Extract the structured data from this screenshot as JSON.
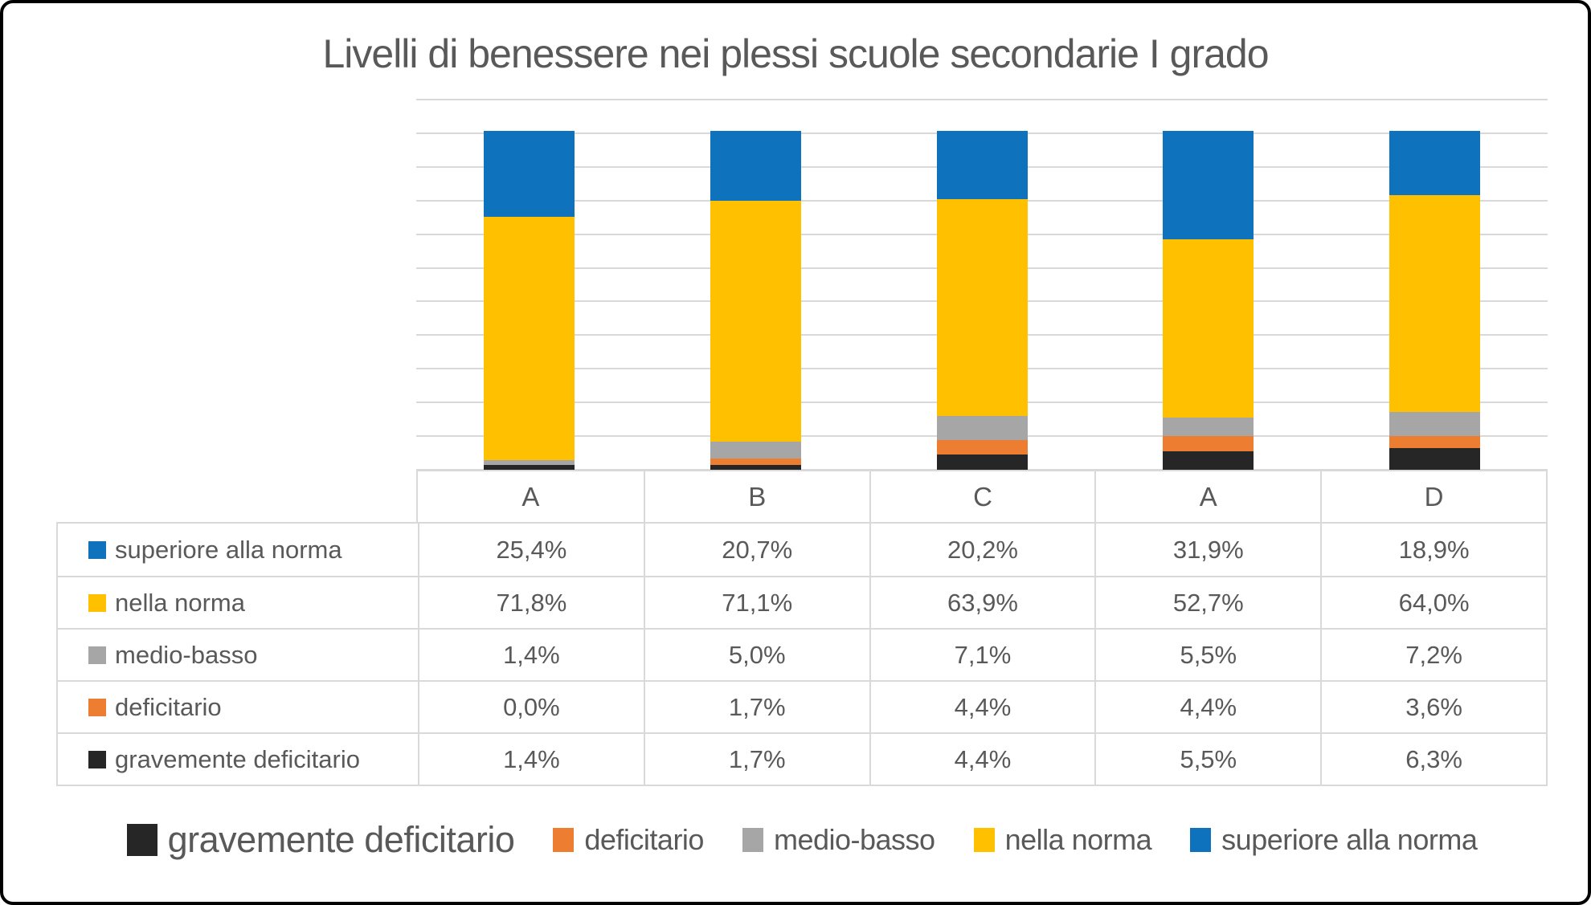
{
  "chart": {
    "title": "Livelli di benessere nei plessi scuole secondarie I grado"
  },
  "chart_data": {
    "type": "bar",
    "subtype": "stacked-percent-column",
    "title": "Livelli di benessere nei plessi scuole secondarie I grado",
    "categories": [
      "A",
      "B",
      "C",
      "A",
      "D"
    ],
    "stack_order": "bottom_to_top",
    "series": [
      {
        "name": "gravemente deficitario",
        "color": "#262626",
        "values": [
          1.4,
          1.7,
          4.4,
          5.5,
          6.3
        ]
      },
      {
        "name": "deficitario",
        "color": "#ED7D31",
        "values": [
          0.0,
          1.7,
          4.4,
          4.4,
          3.6
        ]
      },
      {
        "name": "medio-basso",
        "color": "#A6A6A6",
        "values": [
          1.4,
          5.0,
          7.1,
          5.5,
          7.2
        ]
      },
      {
        "name": "nella norma",
        "color": "#FFC000",
        "values": [
          71.8,
          71.1,
          63.9,
          52.7,
          64.0
        ]
      },
      {
        "name": "superiore alla norma",
        "color": "#0E72BD",
        "values": [
          25.4,
          20.7,
          20.2,
          31.9,
          18.9
        ]
      }
    ],
    "ylim": [
      0,
      110
    ],
    "gridline_step": 10,
    "grid": true,
    "y_axis_labels_visible": false,
    "legend_position": "bottom"
  },
  "table": {
    "column_headers": [
      "A",
      "B",
      "C",
      "A",
      "D"
    ],
    "rows": [
      {
        "label": "superiore alla norma",
        "color": "#0E72BD",
        "values": [
          "25,4%",
          "20,7%",
          "20,2%",
          "31,9%",
          "18,9%"
        ]
      },
      {
        "label": "nella norma",
        "color": "#FFC000",
        "values": [
          "71,8%",
          "71,1%",
          "63,9%",
          "52,7%",
          "64,0%"
        ]
      },
      {
        "label": "medio-basso",
        "color": "#A6A6A6",
        "values": [
          "1,4%",
          "5,0%",
          "7,1%",
          "5,5%",
          "7,2%"
        ]
      },
      {
        "label": "deficitario",
        "color": "#ED7D31",
        "values": [
          "0,0%",
          "1,7%",
          "4,4%",
          "4,4%",
          "3,6%"
        ]
      },
      {
        "label": "gravemente deficitario",
        "color": "#262626",
        "values": [
          "1,4%",
          "1,7%",
          "4,4%",
          "5,5%",
          "6,3%"
        ]
      }
    ]
  },
  "legend": {
    "items": [
      {
        "label": "gravemente deficitario",
        "color": "#262626",
        "emphasized": true
      },
      {
        "label": "deficitario",
        "color": "#ED7D31",
        "emphasized": false
      },
      {
        "label": "medio-basso",
        "color": "#A6A6A6",
        "emphasized": false
      },
      {
        "label": "nella norma",
        "color": "#FFC000",
        "emphasized": false
      },
      {
        "label": "superiore alla norma",
        "color": "#0E72BD",
        "emphasized": false
      }
    ]
  },
  "colors": {
    "blue": "#0E72BD",
    "yellow": "#FFC000",
    "gray": "#A6A6A6",
    "orange": "#ED7D31",
    "black": "#262626",
    "gridline": "#D9D9D9",
    "table_border": "#D9D9D9",
    "text": "#595959",
    "outer_border": "#000000"
  }
}
